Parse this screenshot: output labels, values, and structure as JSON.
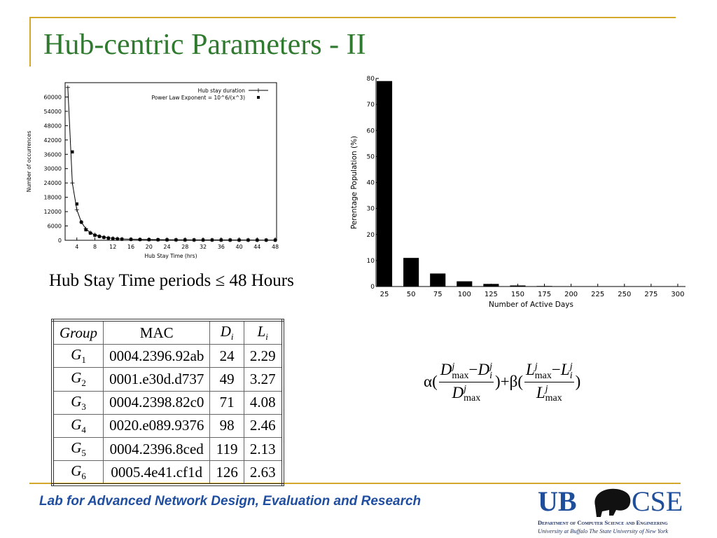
{
  "title": "Hub-centric Parameters - II",
  "chart_data": [
    {
      "type": "line",
      "xlabel": "Hub Stay Time (hrs)",
      "ylabel": "Number of occurrences",
      "xlim": [
        1.4,
        48.3
      ],
      "ylim": [
        0,
        66000
      ],
      "xticks": [
        4,
        8,
        12,
        16,
        20,
        24,
        28,
        32,
        36,
        40,
        44,
        48
      ],
      "yticks": [
        0,
        6000,
        12000,
        18000,
        24000,
        30000,
        36000,
        42000,
        48000,
        54000,
        60000
      ],
      "legend": "top-right",
      "series": [
        {
          "name": "Hub stay duration",
          "color": "#000000",
          "line": true,
          "marker": "plus",
          "x": [
            2,
            3,
            4,
            5,
            6,
            7,
            8,
            9,
            10,
            11,
            12,
            13,
            14,
            16,
            18,
            20,
            22,
            24,
            26,
            28,
            30,
            32,
            34,
            36,
            38,
            40,
            42,
            44,
            46,
            48
          ],
          "values": [
            64000,
            24000,
            12800,
            7600,
            4800,
            3200,
            2300,
            1700,
            1300,
            1000,
            800,
            650,
            550,
            450,
            380,
            320,
            270,
            230,
            200,
            180,
            160,
            150,
            140,
            130,
            120,
            110,
            100,
            90,
            90,
            80
          ]
        },
        {
          "name": "Power Law Exponent = 10^6/(x^3)",
          "color": "#000000",
          "line": false,
          "marker": "square",
          "x": [
            3,
            4,
            5,
            6,
            7,
            8,
            9,
            10,
            11,
            12,
            13,
            14,
            16,
            18,
            20,
            22,
            24,
            26,
            28,
            30,
            32,
            34,
            36,
            38,
            40,
            42,
            44,
            46,
            48
          ],
          "values": [
            37000,
            15200,
            7600,
            4400,
            3000,
            2100,
            1600,
            1200,
            900,
            700,
            550,
            450,
            380,
            320,
            270,
            230,
            200,
            180,
            160,
            150,
            140,
            130,
            120,
            110,
            100,
            100,
            90,
            90,
            80
          ]
        }
      ]
    },
    {
      "type": "bar",
      "xlabel": "Number of Active Days",
      "ylabel": "Perentage Population (%)",
      "categories": [
        "25",
        "50",
        "75",
        "100",
        "125",
        "150",
        "175",
        "200",
        "225",
        "250",
        "275",
        "300"
      ],
      "values": [
        79,
        11,
        5,
        2,
        1,
        0.4,
        0.2,
        0,
        0,
        0,
        0,
        0
      ],
      "color": "#000000",
      "ylim": [
        0,
        80
      ],
      "yticks": [
        0,
        10,
        20,
        30,
        40,
        50,
        60,
        70,
        80
      ]
    }
  ],
  "caption": "Hub Stay Time periods ≤ 48 Hours",
  "table": {
    "header": [
      {
        "text": "Group"
      },
      {
        "text": "MAC"
      },
      {
        "text": "D",
        "sub": "i"
      },
      {
        "text": "L",
        "sub": "i"
      }
    ],
    "rows": [
      {
        "group": "G",
        "sub": "1",
        "mac": "0004.2396.92ab",
        "d": 24,
        "l": 2.29
      },
      {
        "group": "G",
        "sub": "2",
        "mac": "0001.e30d.d737",
        "d": 49,
        "l": 3.27
      },
      {
        "group": "G",
        "sub": "3",
        "mac": "0004.2398.82c0",
        "d": 71,
        "l": 4.08
      },
      {
        "group": "G",
        "sub": "4",
        "mac": "0020.e089.9376",
        "d": 98,
        "l": 2.46
      },
      {
        "group": "G",
        "sub": "5",
        "mac": "0004.2396.8ced",
        "d": 119,
        "l": 2.13
      },
      {
        "group": "G",
        "sub": "6",
        "mac": "0005.4e41.cf1d",
        "d": 126,
        "l": 2.63
      }
    ]
  },
  "formula": {
    "alpha": "α",
    "beta": "β",
    "open": "(",
    "close": ")",
    "plus": "+",
    "minus": "−",
    "D": "D",
    "L": "L",
    "j": "j",
    "max": "max",
    "i": "i"
  },
  "footer": {
    "text": "Lab for Advanced Network Design, Evaluation and Research",
    "logo_left": "UB",
    "logo_right": "CSE",
    "department": "Department of Computer Science and Engineering",
    "university": "University at Buffalo The State University of New York"
  }
}
